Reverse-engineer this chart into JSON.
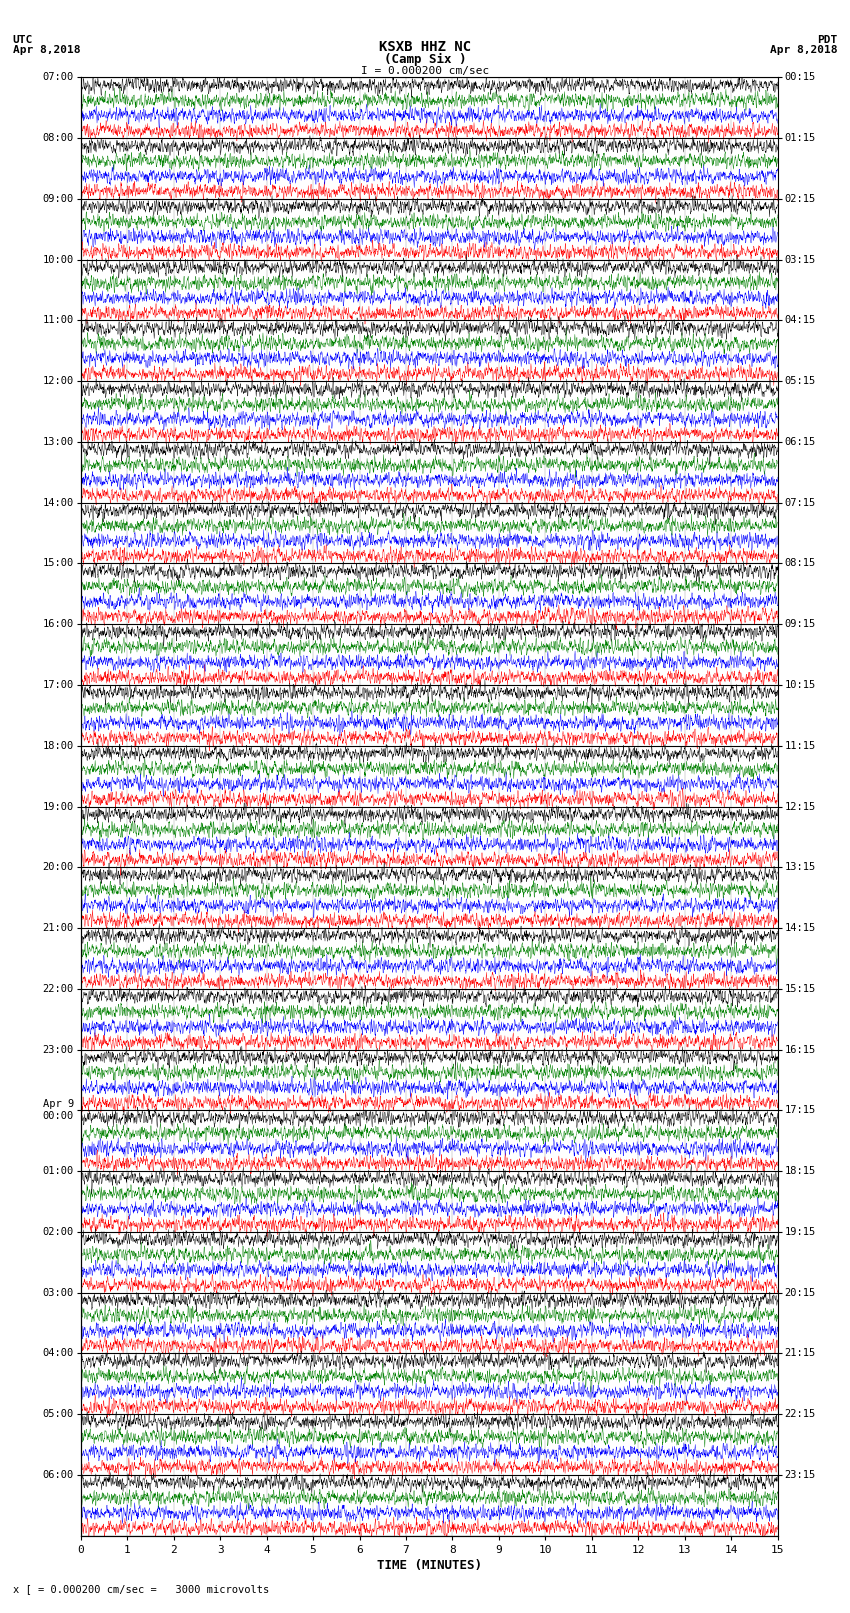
{
  "title_line1": "KSXB HHZ NC",
  "title_line2": "(Camp Six )",
  "scale_label": "I = 0.000200 cm/sec",
  "left_date_label": "UTC\nApr 8,2018",
  "right_date_label": "PDT\nApr 8,2018",
  "xlabel": "TIME (MINUTES)",
  "bottom_label": "= 0.000200 cm/sec =   3000 microvolts",
  "scale_marker": "x [",
  "left_times": [
    "07:00",
    "08:00",
    "09:00",
    "10:00",
    "11:00",
    "12:00",
    "13:00",
    "14:00",
    "15:00",
    "16:00",
    "17:00",
    "18:00",
    "19:00",
    "20:00",
    "21:00",
    "22:00",
    "23:00",
    "Apr 9\n00:00",
    "01:00",
    "02:00",
    "03:00",
    "04:00",
    "05:00",
    "06:00"
  ],
  "right_times": [
    "00:15",
    "01:15",
    "02:15",
    "03:15",
    "04:15",
    "05:15",
    "06:15",
    "07:15",
    "08:15",
    "09:15",
    "10:15",
    "11:15",
    "12:15",
    "13:15",
    "14:15",
    "15:15",
    "16:15",
    "17:15",
    "18:15",
    "19:15",
    "20:15",
    "21:15",
    "22:15",
    "23:15"
  ],
  "n_rows": 24,
  "n_subtraces": 4,
  "n_minutes": 15,
  "colors": [
    "red",
    "blue",
    "green",
    "black"
  ],
  "figsize": [
    8.5,
    16.13
  ],
  "dpi": 100,
  "bg_color": "white",
  "xticks": [
    0,
    1,
    2,
    3,
    4,
    5,
    6,
    7,
    8,
    9,
    10,
    11,
    12,
    13,
    14,
    15
  ],
  "noise_amplitude": 0.38,
  "high_freq_factor": 15,
  "seed": 12345
}
